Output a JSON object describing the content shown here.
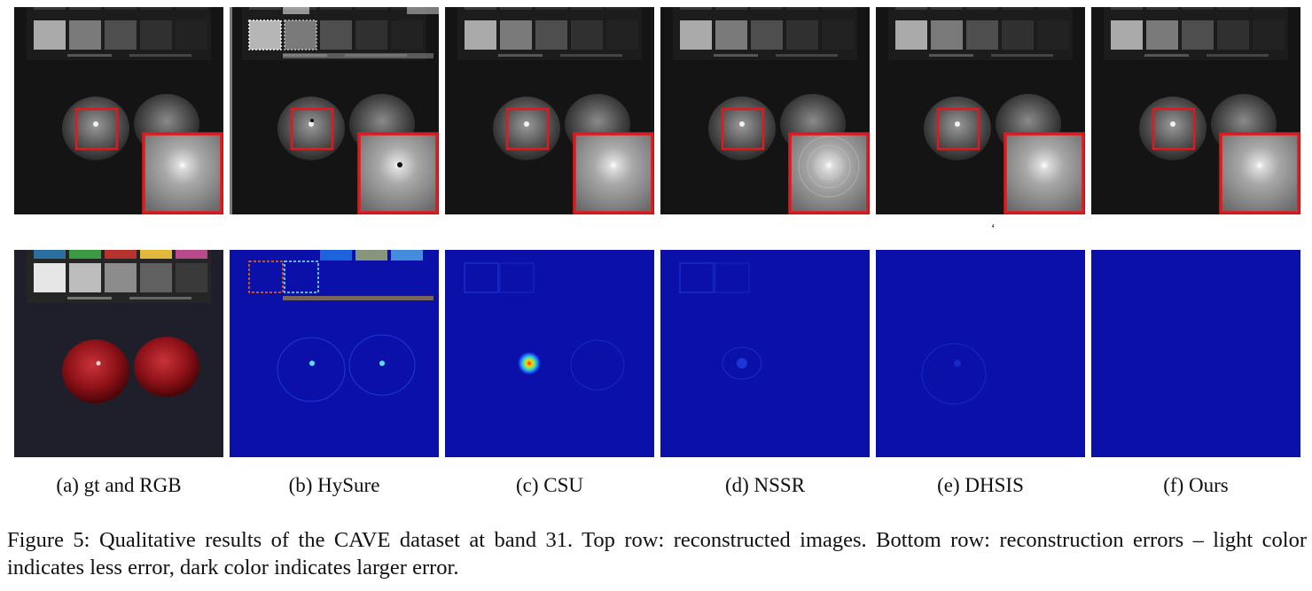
{
  "figure": {
    "number": "Figure 5:",
    "caption": "Qualitative results of the CAVE dataset at band 31. Top row: reconstructed images. Bottom row: reconstruction errors – light color indicates less error, dark color indicates larger error.",
    "stray_mark": "‘"
  },
  "columns": [
    {
      "label": "(a) gt and RGB",
      "method": "gt",
      "top_artifact": "none",
      "bottom_kind": "rgb",
      "error_level": 0
    },
    {
      "label": "(b) HySure",
      "method": "HySure",
      "top_artifact": "speckle",
      "bottom_kind": "error",
      "error_level": 0.85
    },
    {
      "label": "(c) CSU",
      "method": "CSU",
      "top_artifact": "none",
      "bottom_kind": "error",
      "error_level": 0.6
    },
    {
      "label": "(d) NSSR",
      "method": "NSSR",
      "top_artifact": "ring",
      "bottom_kind": "error",
      "error_level": 0.35
    },
    {
      "label": "(e) DHSIS",
      "method": "DHSIS",
      "top_artifact": "none",
      "bottom_kind": "error",
      "error_level": 0.25
    },
    {
      "label": "(f) Ours",
      "method": "Ours",
      "top_artifact": "none",
      "bottom_kind": "error",
      "error_level": 0.05
    }
  ],
  "colors": {
    "zoom_box": "#e0191f",
    "error_background": "#0a10a8",
    "scene_background": "#121212"
  },
  "icons": {
    "zoom_region": "red-rectangle-icon",
    "zoom_inset": "magnified-inset-icon"
  }
}
